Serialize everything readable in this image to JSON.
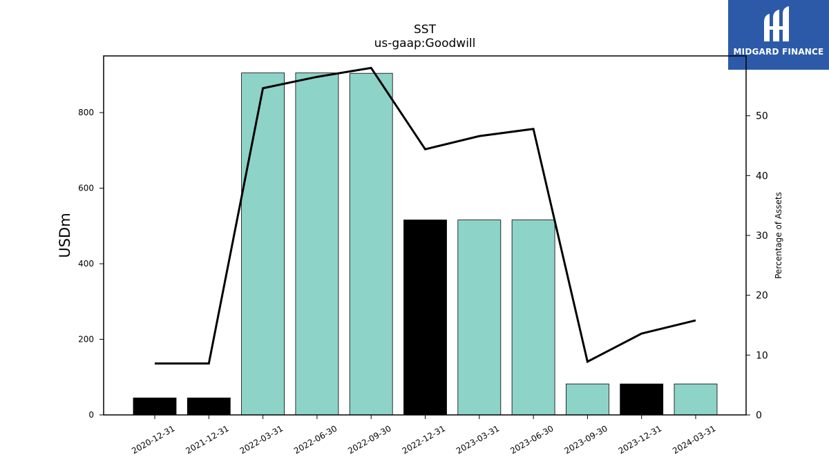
{
  "logo": {
    "text": "MIDGARD FINANCE",
    "icon": "midgard-m-logo-icon",
    "background": "#2d5aa8"
  },
  "chart_data": {
    "type": "bar",
    "title": "SST",
    "subtitle": "us-gaap:Goodwill",
    "ylabel": "USDm",
    "ylabel_right": "Percentage of Assets",
    "categories": [
      "2020-12-31",
      "2021-12-31",
      "2022-03-31",
      "2022-06-30",
      "2022-09-30",
      "2022-12-31",
      "2023-03-31",
      "2023-06-30",
      "2023-09-30",
      "2023-12-31",
      "2024-03-31"
    ],
    "series": [
      {
        "type": "bar",
        "values": [
          45,
          45,
          905,
          905,
          904,
          516,
          516,
          516,
          82,
          82,
          82
        ]
      },
      {
        "type": "line",
        "axis": "right",
        "values": [
          8.6,
          8.6,
          54.6,
          56.5,
          58.0,
          44.4,
          46.6,
          47.8,
          8.9,
          13.6,
          15.8
        ]
      }
    ],
    "bar_colors": [
      "#000000",
      "#000000",
      "#8ed3c7",
      "#8ed3c7",
      "#8ed3c7",
      "#000000",
      "#8ed3c7",
      "#8ed3c7",
      "#8ed3c7",
      "#000000",
      "#8ed3c7"
    ],
    "line_color": "#000000",
    "ylim": [
      0,
      950
    ],
    "ylim_right": [
      0,
      60
    ],
    "yticks": [
      0,
      200,
      400,
      600,
      800
    ],
    "yticks_right": [
      0,
      10,
      20,
      30,
      40,
      50
    ],
    "grid": false
  }
}
